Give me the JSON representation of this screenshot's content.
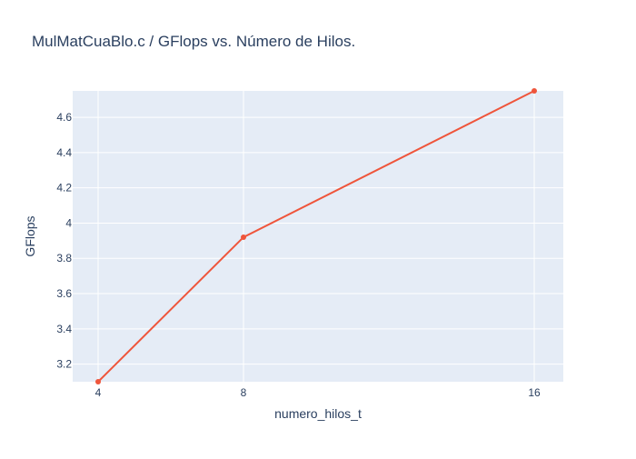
{
  "chart_data": {
    "type": "line",
    "title": "MulMatCuaBlo.c / GFlops vs. Número de Hilos.",
    "xlabel": "numero_hilos_t",
    "ylabel": "GFlops",
    "x": [
      4,
      8,
      16
    ],
    "series": [
      {
        "values": [
          3.1,
          3.92,
          4.75
        ],
        "color": "#ef553b"
      }
    ],
    "xlim": [
      3.3,
      16.8
    ],
    "ylim": [
      3.1,
      4.75
    ],
    "xticks": [
      4,
      8,
      16
    ],
    "yticks": [
      3.2,
      3.4,
      3.6,
      3.8,
      4,
      4.2,
      4.4,
      4.6
    ],
    "grid": true,
    "plot_background": "#e5ecf6",
    "gridline_color": "#ffffff",
    "text_color": "#2a3f5f"
  }
}
